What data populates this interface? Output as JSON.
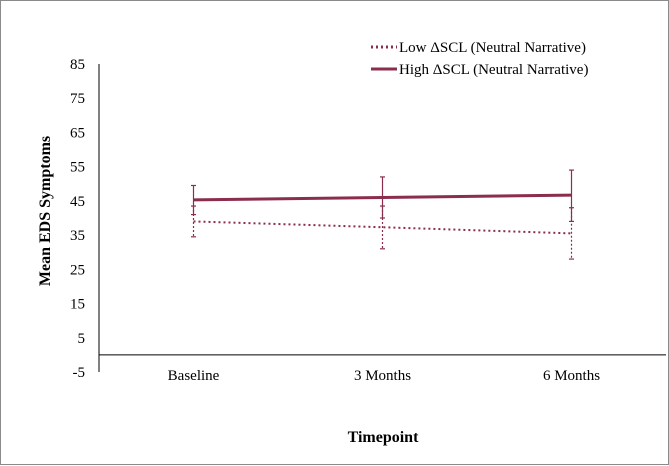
{
  "chart_data": {
    "type": "line",
    "categories": [
      "Baseline",
      "3 Months",
      "6 Months"
    ],
    "xlabel": "Timepoint",
    "ylabel": "Mean EDS Symptoms",
    "ylim": [
      -5,
      85
    ],
    "yticks": [
      -5,
      5,
      15,
      25,
      35,
      45,
      55,
      65,
      75,
      85
    ],
    "grid": false,
    "legend_position": "top-right",
    "series": [
      {
        "name": "Low ΔSCL (Neutral Narrative)",
        "style": "dotted",
        "color": "#8b2e4e",
        "values": [
          39,
          37.3,
          35.5
        ],
        "error_low": [
          34.5,
          31,
          28
        ],
        "error_high": [
          43.5,
          43.5,
          43
        ]
      },
      {
        "name": "High ΔSCL (Neutral Narrative)",
        "style": "solid",
        "color": "#8b2e4e",
        "values": [
          45.3,
          46,
          46.7
        ],
        "error_low": [
          41,
          40,
          39
        ],
        "error_high": [
          49.5,
          52,
          54
        ]
      }
    ]
  }
}
